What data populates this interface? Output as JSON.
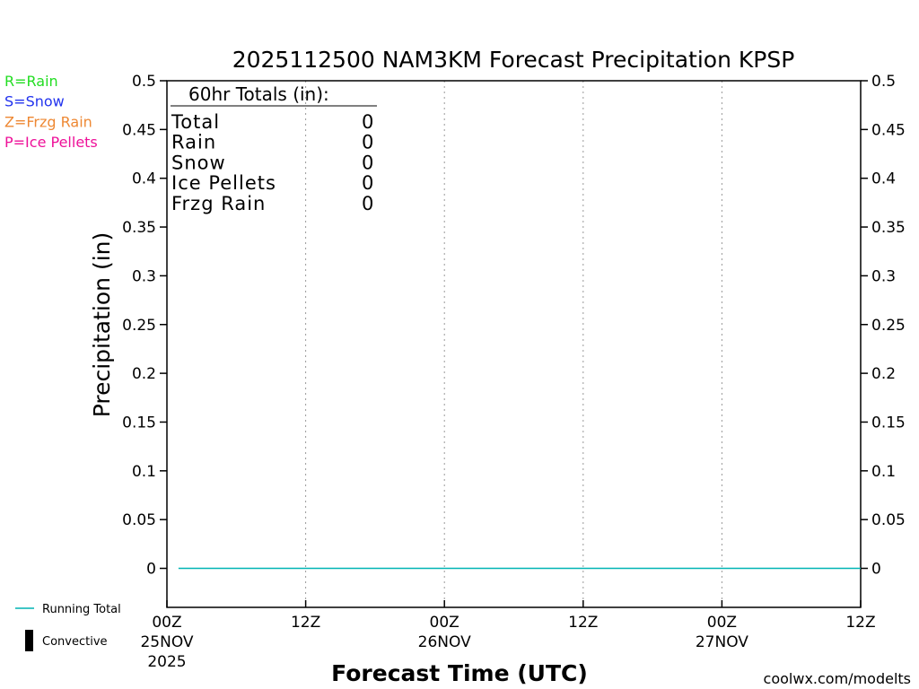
{
  "chart_data": {
    "type": "line",
    "title": "2025112500 NAM3KM Forecast Precipitation KPSP",
    "xlabel": "Forecast Time (UTC)",
    "ylabel": "Precipitation (in)",
    "ylim": [
      -0.04,
      0.5
    ],
    "y_ticks": [
      0,
      0.05,
      0.1,
      0.15,
      0.2,
      0.25,
      0.3,
      0.35,
      0.4,
      0.45,
      0.5
    ],
    "y_tick_labels": [
      "0",
      "0.05",
      "0.1",
      "0.15",
      "0.2",
      "0.25",
      "0.3",
      "0.35",
      "0.4",
      "0.45",
      "0.5"
    ],
    "xlim": [
      0,
      60
    ],
    "x_ticks": [
      {
        "hour": 0,
        "time": "00Z",
        "date": "25NOV",
        "year": "2025"
      },
      {
        "hour": 12,
        "time": "12Z",
        "date": "",
        "year": ""
      },
      {
        "hour": 24,
        "time": "00Z",
        "date": "26NOV",
        "year": ""
      },
      {
        "hour": 36,
        "time": "12Z",
        "date": "",
        "year": ""
      },
      {
        "hour": 48,
        "time": "00Z",
        "date": "27NOV",
        "year": ""
      },
      {
        "hour": 60,
        "time": "12Z",
        "date": "",
        "year": ""
      }
    ],
    "grid_x_hours": [
      12,
      24,
      36,
      48
    ],
    "series": [
      {
        "name": "Running Total",
        "color": "#00b4b4",
        "x": [
          1,
          60
        ],
        "y": [
          0,
          0
        ]
      }
    ],
    "totals": {
      "heading": "60hr Totals (in):",
      "rows": [
        {
          "label": "Total",
          "value": "0"
        },
        {
          "label": "Rain",
          "value": "0"
        },
        {
          "label": "Snow",
          "value": "0"
        },
        {
          "label": "Ice Pellets",
          "value": "0"
        },
        {
          "label": "Frzg Rain",
          "value": "0"
        }
      ]
    },
    "type_legend": [
      {
        "text": "R=Rain",
        "color": "#22dd22"
      },
      {
        "text": "S=Snow",
        "color": "#2233ee"
      },
      {
        "text": "Z=Frzg Rain",
        "color": "#ee8833"
      },
      {
        "text": "P=Ice Pellets",
        "color": "#ee1199"
      }
    ],
    "series_legend": [
      {
        "text": "Running Total",
        "kind": "line",
        "color": "#00b4b4"
      },
      {
        "text": "Convective",
        "kind": "bar",
        "color": "#000000"
      }
    ],
    "credit": {
      "text": "coolwx.com/modelts",
      "color": "#cc1111"
    }
  }
}
